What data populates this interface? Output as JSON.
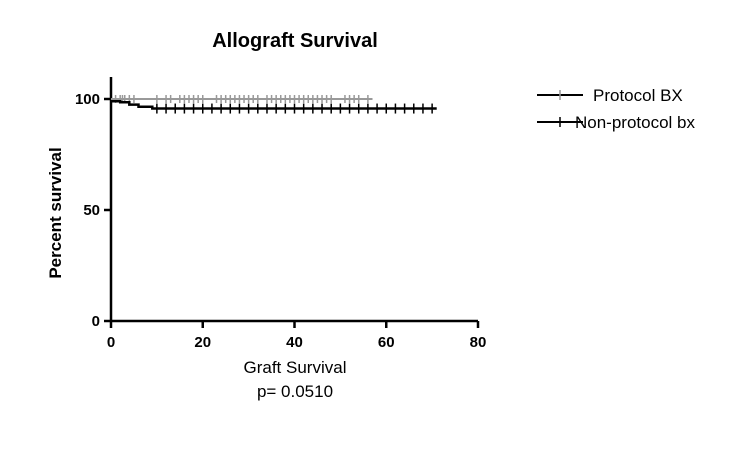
{
  "chart_data": {
    "type": "line",
    "title": "Allograft Survival",
    "ylabel": "Percent survival",
    "xlabel": "Graft Survival",
    "annotation": "p= 0.0510",
    "xlim": [
      0,
      80
    ],
    "ylim": [
      0,
      110
    ],
    "x_ticks": [
      0,
      20,
      40,
      60,
      80
    ],
    "y_ticks": [
      0,
      50,
      100
    ],
    "grid": false,
    "legend_position": "top-right",
    "series": [
      {
        "name": "Protocol BX",
        "color": "#999999",
        "step": [
          [
            0,
            100
          ],
          [
            57,
            100
          ]
        ],
        "censor_x": [
          1,
          2,
          2.5,
          3,
          4,
          5,
          10,
          12,
          13,
          15,
          16,
          17,
          18,
          19,
          20,
          23,
          24,
          25,
          26,
          27,
          28,
          29,
          30,
          31,
          32,
          34,
          35,
          36,
          37,
          38,
          39,
          40,
          41,
          42,
          43,
          44,
          45,
          46,
          47,
          48,
          51,
          52,
          53,
          54,
          56
        ]
      },
      {
        "name": "Non-protocol bx",
        "color": "#000000",
        "step": [
          [
            0,
            99
          ],
          [
            2,
            99
          ],
          [
            2,
            98.5
          ],
          [
            4,
            98.5
          ],
          [
            4,
            97.5
          ],
          [
            6,
            97.5
          ],
          [
            6,
            96.5
          ],
          [
            9,
            96.5
          ],
          [
            9,
            95.7
          ],
          [
            71,
            95.7
          ]
        ],
        "censor_x": [
          10,
          12,
          14,
          16,
          18,
          20,
          22,
          24,
          26,
          28,
          30,
          32,
          34,
          36,
          38,
          40,
          42,
          44,
          46,
          48,
          50,
          52,
          54,
          56,
          58,
          60,
          62,
          64,
          66,
          68,
          70
        ]
      }
    ]
  }
}
